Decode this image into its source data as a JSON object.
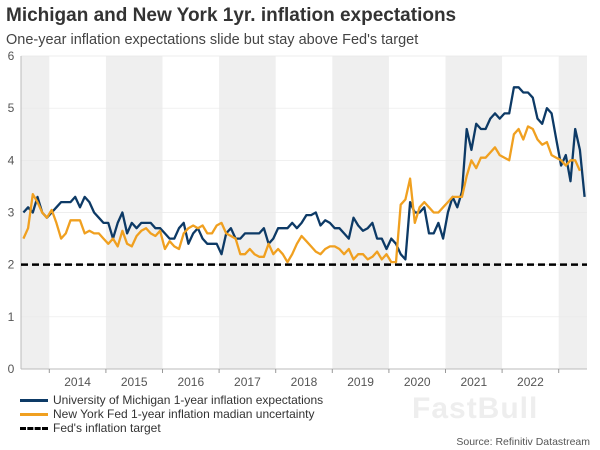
{
  "chart_data": {
    "type": "line",
    "title": "Michigan and New York 1yr. inflation expectations",
    "subtitle": "One-year inflation expectations slide but stay above Fed's target",
    "ylim": [
      0,
      6
    ],
    "yticks": [
      0,
      1,
      2,
      3,
      4,
      5,
      6
    ],
    "xlim": [
      "2013-07",
      "2023-06"
    ],
    "xtick_labels": [
      "2014",
      "2015",
      "2016",
      "2017",
      "2018",
      "2019",
      "2020",
      "2021",
      "2022"
    ],
    "alternating_year_shading": true,
    "legend_placement": "bottom-left",
    "x": [
      "2013-07",
      "2013-08",
      "2013-09",
      "2013-10",
      "2013-11",
      "2013-12",
      "2014-01",
      "2014-02",
      "2014-03",
      "2014-04",
      "2014-05",
      "2014-06",
      "2014-07",
      "2014-08",
      "2014-09",
      "2014-10",
      "2014-11",
      "2014-12",
      "2015-01",
      "2015-02",
      "2015-03",
      "2015-04",
      "2015-05",
      "2015-06",
      "2015-07",
      "2015-08",
      "2015-09",
      "2015-10",
      "2015-11",
      "2015-12",
      "2016-01",
      "2016-02",
      "2016-03",
      "2016-04",
      "2016-05",
      "2016-06",
      "2016-07",
      "2016-08",
      "2016-09",
      "2016-10",
      "2016-11",
      "2016-12",
      "2017-01",
      "2017-02",
      "2017-03",
      "2017-04",
      "2017-05",
      "2017-06",
      "2017-07",
      "2017-08",
      "2017-09",
      "2017-10",
      "2017-11",
      "2017-12",
      "2018-01",
      "2018-02",
      "2018-03",
      "2018-04",
      "2018-05",
      "2018-06",
      "2018-07",
      "2018-08",
      "2018-09",
      "2018-10",
      "2018-11",
      "2018-12",
      "2019-01",
      "2019-02",
      "2019-03",
      "2019-04",
      "2019-05",
      "2019-06",
      "2019-07",
      "2019-08",
      "2019-09",
      "2019-10",
      "2019-11",
      "2019-12",
      "2020-01",
      "2020-02",
      "2020-03",
      "2020-04",
      "2020-05",
      "2020-06",
      "2020-07",
      "2020-08",
      "2020-09",
      "2020-10",
      "2020-11",
      "2020-12",
      "2021-01",
      "2021-02",
      "2021-03",
      "2021-04",
      "2021-05",
      "2021-06",
      "2021-07",
      "2021-08",
      "2021-09",
      "2021-10",
      "2021-11",
      "2021-12",
      "2022-01",
      "2022-02",
      "2022-03",
      "2022-04",
      "2022-05",
      "2022-06",
      "2022-07",
      "2022-08",
      "2022-09",
      "2022-10",
      "2022-11",
      "2022-12",
      "2023-01",
      "2023-02",
      "2023-03",
      "2023-04",
      "2023-05",
      "2023-06"
    ],
    "series": [
      {
        "name": "University of Michigan 1-year inflation expectations",
        "color": "#0d3a66",
        "values": [
          3.0,
          3.1,
          3.0,
          3.3,
          3.0,
          2.9,
          3.0,
          3.1,
          3.2,
          3.2,
          3.2,
          3.3,
          3.1,
          3.3,
          3.2,
          3.0,
          2.9,
          2.8,
          2.8,
          2.5,
          2.8,
          3.0,
          2.6,
          2.8,
          2.7,
          2.8,
          2.8,
          2.8,
          2.7,
          2.7,
          2.6,
          2.5,
          2.5,
          2.7,
          2.8,
          2.4,
          2.6,
          2.7,
          2.5,
          2.4,
          2.4,
          2.4,
          2.2,
          2.6,
          2.7,
          2.5,
          2.5,
          2.6,
          2.6,
          2.6,
          2.6,
          2.7,
          2.4,
          2.5,
          2.7,
          2.7,
          2.7,
          2.8,
          2.7,
          2.8,
          2.95,
          2.95,
          3.0,
          2.75,
          2.85,
          2.8,
          2.7,
          2.7,
          2.6,
          2.5,
          2.9,
          2.75,
          2.65,
          2.7,
          2.8,
          2.5,
          2.5,
          2.3,
          2.5,
          2.4,
          2.2,
          2.1,
          3.2,
          3.0,
          3.0,
          3.1,
          2.6,
          2.6,
          2.8,
          2.5,
          3.0,
          3.3,
          3.1,
          3.4,
          4.6,
          4.2,
          4.7,
          4.6,
          4.6,
          4.8,
          4.9,
          4.8,
          4.9,
          4.9,
          5.4,
          5.4,
          5.3,
          5.3,
          5.2,
          4.8,
          4.7,
          5.0,
          4.9,
          4.4,
          3.9,
          4.1,
          3.6,
          4.6,
          4.2,
          3.3
        ]
      },
      {
        "name": "New York Fed 1-year inflation madian uncertainty",
        "color": "#f0a020",
        "values": [
          2.5,
          2.7,
          3.35,
          3.2,
          3.0,
          2.9,
          3.05,
          2.8,
          2.5,
          2.6,
          2.85,
          2.85,
          2.85,
          2.6,
          2.65,
          2.6,
          2.6,
          2.5,
          2.4,
          2.5,
          2.35,
          2.65,
          2.4,
          2.35,
          2.55,
          2.65,
          2.7,
          2.6,
          2.55,
          2.65,
          2.3,
          2.45,
          2.35,
          2.3,
          2.6,
          2.7,
          2.75,
          2.7,
          2.75,
          2.6,
          2.6,
          2.75,
          2.8,
          2.6,
          2.55,
          2.5,
          2.2,
          2.2,
          2.3,
          2.2,
          2.15,
          2.15,
          2.4,
          2.2,
          2.3,
          2.2,
          2.05,
          2.2,
          2.4,
          2.55,
          2.45,
          2.35,
          2.25,
          2.2,
          2.3,
          2.35,
          2.35,
          2.3,
          2.2,
          2.3,
          2.1,
          2.2,
          2.2,
          2.1,
          2.15,
          2.25,
          2.1,
          2.2,
          2.05,
          2.05,
          3.15,
          3.25,
          3.65,
          2.8,
          3.1,
          3.2,
          3.1,
          3.0,
          3.0,
          3.1,
          3.2,
          3.3,
          3.3,
          3.3,
          3.7,
          4.0,
          3.85,
          4.05,
          4.05,
          4.15,
          4.25,
          4.1,
          4.05,
          4.0,
          4.5,
          4.6,
          4.4,
          4.65,
          4.6,
          4.4,
          4.3,
          4.35,
          4.1,
          4.05,
          4.0,
          3.9,
          4.0,
          4.0,
          3.8,
          null
        ]
      },
      {
        "name": "Fed's inflation target",
        "color": "#000000",
        "style": "dashed",
        "constant": 2
      }
    ],
    "source": "Source: Refinitiv Datastream"
  },
  "watermark": "FastBull"
}
